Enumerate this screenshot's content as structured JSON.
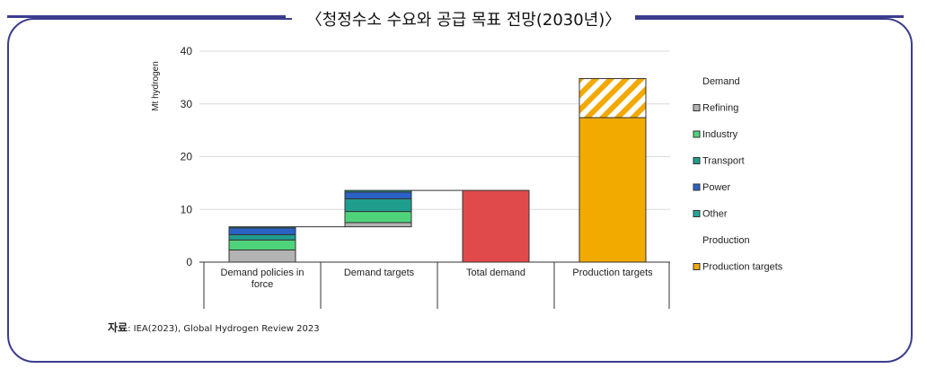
{
  "title": "〈청정수소 수요와 공급 목표 전망(2030년)〉",
  "source": {
    "label": "자료",
    "text": ": IEA(2023), Global Hydrogen Review 2023"
  },
  "colors": {
    "frame": "#3b3d8c",
    "refining": "#b3b3b3",
    "industry": "#4fd37a",
    "transport": "#1f9e8e",
    "power": "#2b63c4",
    "other": "#1fa898",
    "total": "#e04a4a",
    "production": "#f2a900"
  },
  "chart_data": {
    "type": "bar",
    "ylabel": "Mt hydrogen",
    "ylim": [
      0,
      40
    ],
    "yticks": [
      0,
      10,
      20,
      30,
      40
    ],
    "categories": [
      "Demand policies in force",
      "Demand targets",
      "Total demand",
      "Production targets"
    ],
    "bars": [
      {
        "category": "Demand policies in force",
        "segments": [
          {
            "series": "Refining",
            "start": 0,
            "end": 2.3
          },
          {
            "series": "Industry",
            "start": 2.3,
            "end": 4.2
          },
          {
            "series": "Transport",
            "start": 4.2,
            "end": 5.2
          },
          {
            "series": "Power",
            "start": 5.2,
            "end": 6.5
          },
          {
            "series": "Other",
            "start": 6.5,
            "end": 6.7
          }
        ]
      },
      {
        "category": "Demand targets",
        "segments": [
          {
            "series": "Refining",
            "start": 6.7,
            "end": 7.5
          },
          {
            "series": "Industry",
            "start": 7.5,
            "end": 9.6
          },
          {
            "series": "Transport",
            "start": 9.6,
            "end": 12.0
          },
          {
            "series": "Power",
            "start": 12.0,
            "end": 13.3
          },
          {
            "series": "Other",
            "start": 13.3,
            "end": 13.6
          }
        ]
      },
      {
        "category": "Total demand",
        "segments": [
          {
            "series": "Total demand",
            "start": 0,
            "end": 13.6
          }
        ]
      },
      {
        "category": "Production targets",
        "segments": [
          {
            "series": "Production targets",
            "start": 0,
            "end": 27.4
          },
          {
            "series": "Production targets (hatched)",
            "start": 27.4,
            "end": 34.8
          }
        ]
      }
    ],
    "legend": {
      "position": "right",
      "groups": [
        {
          "heading": "Demand",
          "items": [
            "Refining",
            "Industry",
            "Transport",
            "Power",
            "Other"
          ]
        },
        {
          "heading": "Production",
          "items": [
            "Production targets"
          ]
        }
      ]
    }
  }
}
